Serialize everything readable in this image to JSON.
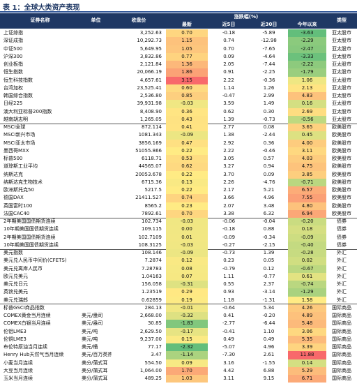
{
  "title": "表 1：全球大类资产表现",
  "table": {
    "columns": [
      "证券名称",
      "单位",
      "收盘价",
      "最新",
      "近5日",
      "近30日",
      "今年以来",
      "类型"
    ],
    "change_header": "涨跌幅(%)",
    "groups": [
      [
        [
          "上证综指",
          null,
          "3,252.63",
          "0.70",
          "-0.18",
          "-5.89",
          "-3.63",
          "亚太股市"
        ],
        [
          "深证成指",
          null,
          "10,292.73",
          "1.15",
          "0.74",
          "-12.98",
          "-2.29",
          "亚太股市"
        ],
        [
          "中证500",
          null,
          "5,649.95",
          "1.05",
          "0.70",
          "-7.65",
          "-2.47",
          "亚太股市"
        ],
        [
          "沪深300",
          null,
          "3,832.86",
          "0.77",
          "0.09",
          "-4.64",
          "-3.33",
          "亚太股市"
        ],
        [
          "创业板指",
          null,
          "2,121.84",
          "1.36",
          "2.05",
          "-7.44",
          "-2.22",
          "亚太股市"
        ],
        [
          "恒生指数",
          null,
          "20,066.19",
          "1.86",
          "0.91",
          "-2.25",
          "-1.79",
          "亚太股市"
        ],
        [
          "恒生科技指数",
          null,
          "4,657.61",
          "3.15",
          "2.22",
          "-0.36",
          "1.06",
          "亚太股市"
        ],
        [
          "台湾加权",
          null,
          "23,525.41",
          "0.60",
          "1.14",
          "1.26",
          "2.13",
          "亚太股市"
        ],
        [
          "韩国综合指数",
          null,
          "2,536.80",
          "0.85",
          "-0.47",
          "2.99",
          "4.83",
          "亚太股市"
        ],
        [
          "日经225",
          null,
          "39,931.98",
          "-0.03",
          "3.59",
          "1.49",
          "0.16",
          "亚太股市"
        ],
        [
          "澳大利亚标普200指数",
          null,
          "8,408.90",
          "0.36",
          "0.62",
          "0.30",
          "2.69",
          "亚太股市"
        ],
        [
          "越南胡志明",
          null,
          "1,265.05",
          "0.43",
          "1.39",
          "-0.73",
          "-0.56",
          "亚太股市"
        ]
      ],
      [
        [
          "MSCI全球",
          null,
          "872.114",
          "0.41",
          "2.77",
          "0.08",
          "3.65",
          "欧美股市"
        ],
        [
          "MSCI新兴市场",
          null,
          "1081.343",
          "-0.09",
          "1.38",
          "-2.44",
          "0.45",
          "欧美股市"
        ],
        [
          "MSCI亚太市场",
          null,
          "3856.169",
          "0.47",
          "2.92",
          "0.36",
          "4.00",
          "欧美股市"
        ],
        [
          "墨西哥MXX",
          null,
          "51055.866",
          "0.22",
          "2.22",
          "-0.46",
          "3.11",
          "欧美股市"
        ],
        [
          "标普500",
          null,
          "6118.71",
          "0.53",
          "3.05",
          "0.57",
          "4.03",
          "欧美股市"
        ],
        [
          "道琼斯工业平均",
          null,
          "44565.07",
          "0.62",
          "3.27",
          "0.94",
          "4.75",
          "欧美股市"
        ],
        [
          "纳斯达克",
          null,
          "20053.678",
          "0.22",
          "3.70",
          "0.09",
          "3.85",
          "欧美股市"
        ],
        [
          "纳斯达克生物技术",
          null,
          "6715.36",
          "0.13",
          "2.26",
          "-4.76",
          "-0.71",
          "欧美股市"
        ],
        [
          "欧洲斯托克50",
          null,
          "5217.5",
          "0.22",
          "2.17",
          "5.21",
          "6.57",
          "欧美股市"
        ],
        [
          "德国DAX",
          null,
          "21411.527",
          "0.74",
          "3.66",
          "4.96",
          "7.55",
          "欧美股市"
        ],
        [
          "英国富时100",
          null,
          "8565.2",
          "0.23",
          "2.07",
          "3.48",
          "4.80",
          "欧美股市"
        ],
        [
          "法国CAC40",
          null,
          "7892.61",
          "0.70",
          "3.38",
          "6.32",
          "6.94",
          "欧美股市"
        ]
      ],
      [
        [
          "2年期美国国债期货连续",
          null,
          "102.734",
          "-0.03",
          "-0.06",
          "-0.04",
          "-0.20",
          "债券"
        ],
        [
          "10年期美国国债期货连续",
          null,
          "109.115",
          "0.00",
          "-0.18",
          "0.88",
          "0.18",
          "债券"
        ],
        [
          "2年期美国国债期货连续",
          null,
          "102.7109",
          "0.01",
          "-0.09",
          "-0.34",
          "-0.09",
          "债券"
        ],
        [
          "10年期美国国债期货连续",
          null,
          "108.3125",
          "-0.03",
          "-0.27",
          "-2.15",
          "-0.40",
          "债券"
        ]
      ],
      [
        [
          "美元指数",
          null,
          "108.146",
          "-0.09",
          "-0.73",
          "1.39",
          "-0.28",
          "外汇"
        ],
        [
          "美元兑人民币中间价(CFETS)",
          null,
          "7.2874",
          "0.12",
          "0.23",
          "0.05",
          "0.02",
          "外汇"
        ],
        [
          "美元兑离岸人民币",
          null,
          "7.28783",
          "0.08",
          "-0.79",
          "0.12",
          "-0.67",
          "外汇"
        ],
        [
          "欧元兑美元",
          null,
          "1.04163",
          "0.07",
          "1.11",
          "-0.77",
          "0.61",
          "外汇"
        ],
        [
          "美元兑日元",
          null,
          "156.058",
          "-0.31",
          "0.55",
          "2.37",
          "-0.74",
          "外汇"
        ],
        [
          "英镑兑美元",
          null,
          "1.23519",
          "0.29",
          "0.93",
          "-3.14",
          "-1.29",
          "外汇"
        ],
        [
          "美元兑瑞郎",
          null,
          "0.62859",
          "0.19",
          "1.18",
          "-1.31",
          "1.58",
          "外汇"
        ]
      ],
      [
        [
          "标普GSCI商品指数",
          null,
          "284.13",
          "-0.01",
          "-0.64",
          "5.34",
          "4.26",
          "国际商品"
        ],
        [
          "COMEX黄金当月连续",
          "美元/盎司",
          "2,668.00",
          "-0.32",
          "0.41",
          "-0.20",
          "4.89",
          "国际商品"
        ],
        [
          "COMEX白银当月连续",
          "美元/盎司",
          "30.85",
          "-1.83",
          "-2.77",
          "-6.44",
          "5.48",
          "国际商品"
        ],
        [
          "伦铝LME3",
          "美元/吨",
          "2,629.50",
          "-0.17",
          "-0.41",
          "1.10",
          "3.06",
          "国际商品"
        ],
        [
          "伦铜LME3",
          "美元/吨",
          "9,237.00",
          "0.15",
          "0.49",
          "0.49",
          "5.35",
          "国际商品"
        ],
        [
          "布伦特原油当月连续",
          "美元/桶",
          "77.17",
          "-2.32",
          "-5.07",
          "4.96",
          "3.39",
          "国际商品"
        ],
        [
          "Henry Hub天然气当月连续",
          "美元/百万英热单位",
          "3.47",
          "-1.14",
          "-7.30",
          "2.61",
          "11.88",
          "国际商品"
        ],
        [
          "小麦当月连续",
          "美分/蒲式耳",
          "554.50",
          "0.09",
          "3.16",
          "-1.55",
          "0.14",
          "国际商品"
        ],
        [
          "大豆当月连续",
          "美分/蒲式耳",
          "1,064.00",
          "1.70",
          "4.42",
          "6.88",
          "5.29",
          "国际商品"
        ],
        [
          "玉米当月连续",
          "美分/蒲式耳",
          "489.25",
          "1.03",
          "3.11",
          "9.15",
          "6.71",
          "国际商品"
        ]
      ]
    ]
  }
}
